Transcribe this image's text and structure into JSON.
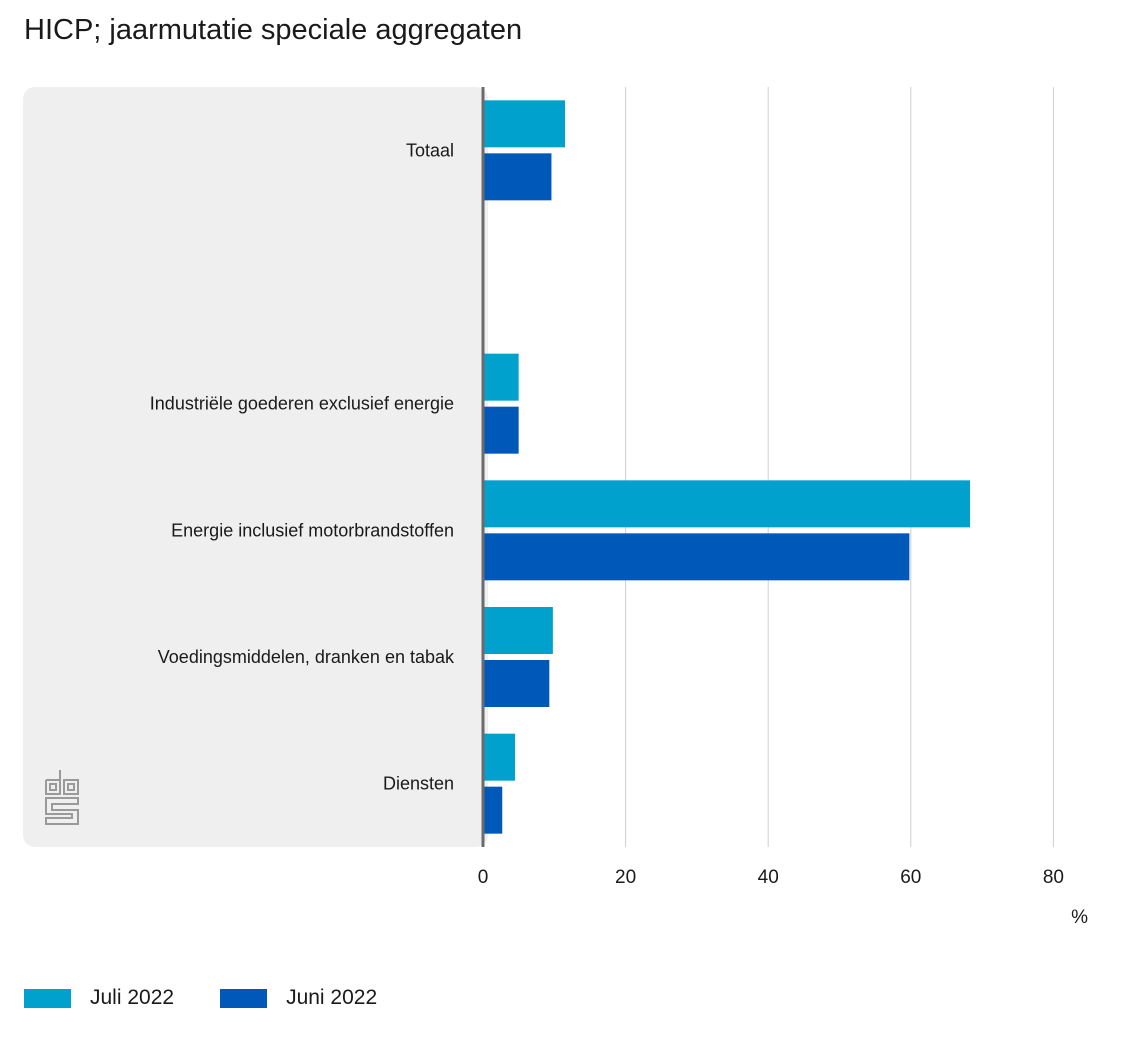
{
  "chart_data": {
    "type": "bar",
    "orientation": "horizontal",
    "title": "HICP; jaarmutatie speciale aggregaten",
    "xlabel": "%",
    "ylabel": "",
    "xlim": [
      0,
      80
    ],
    "xticks": [
      0,
      20,
      40,
      60,
      80
    ],
    "xtick_labels": [
      "0",
      "20",
      "40",
      "60",
      "80"
    ],
    "grid": true,
    "legend_position": "bottom-left",
    "categories": [
      "Totaal",
      "",
      "Industriële goederen exclusief energie",
      "Energie inclusief motorbrandstoffen",
      "Voedingsmiddelen, dranken en tabak",
      "Diensten"
    ],
    "series": [
      {
        "name": "Juli 2022",
        "color": "#00a1cd",
        "values": [
          11.5,
          null,
          5.0,
          68.3,
          9.8,
          4.5
        ]
      },
      {
        "name": "Juni 2022",
        "color": "#0058b8",
        "values": [
          9.6,
          null,
          5.0,
          59.8,
          9.3,
          2.7
        ]
      }
    ]
  },
  "legend": {
    "items": [
      {
        "label": "Juli 2022",
        "color": "#00a1cd"
      },
      {
        "label": "Juni 2022",
        "color": "#0058b8"
      }
    ]
  },
  "logo": {
    "name": "cbs"
  }
}
